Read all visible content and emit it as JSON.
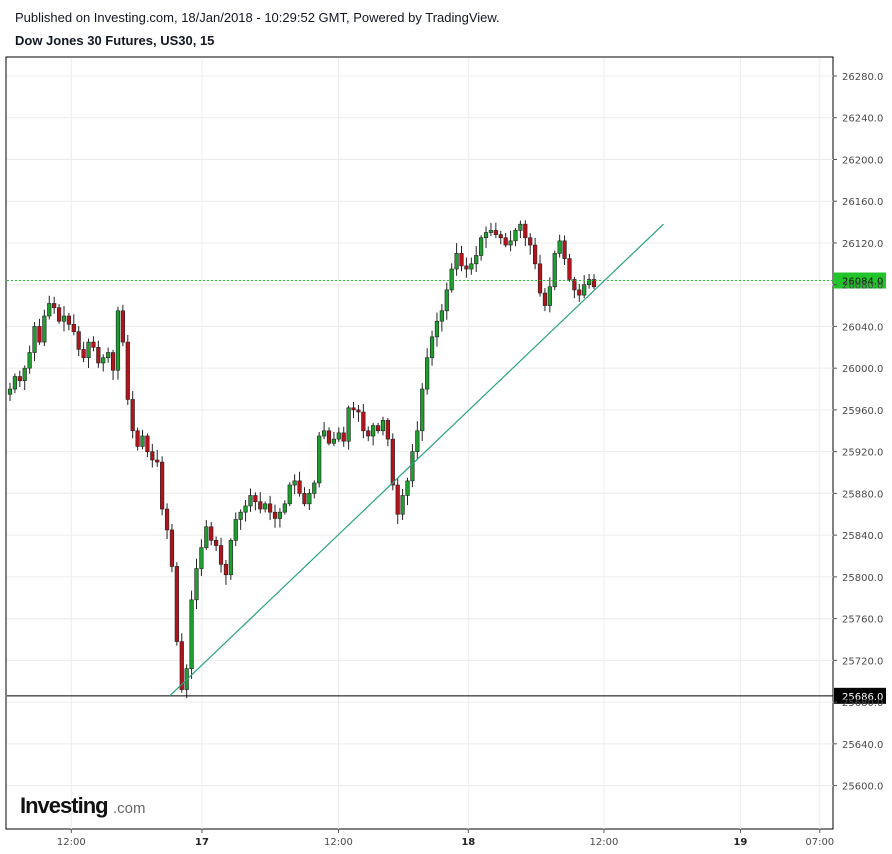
{
  "header": {
    "published": "Published on Investing.com, 18/Jan/2018 - 10:29:52 GMT, Powered by TradingView.",
    "title": "Dow Jones 30 Futures, US30, 15"
  },
  "watermark": {
    "brand": "Investing",
    "suffix": ".com"
  },
  "colors": {
    "up": "#1e9e2e",
    "down": "#b3141b",
    "wick": "#222222",
    "trendline": "#2aa383",
    "current_price": "#22c32b",
    "level_line": "#000000",
    "grid": "#ececec"
  },
  "chart_data": {
    "type": "candlestick",
    "title": "Dow Jones 30 Futures, US30, 15",
    "interval": "15",
    "ylim": [
      25560,
      26300
    ],
    "y_ticks": [
      26280,
      26240,
      26200,
      26160,
      26120,
      26080,
      26040,
      26000,
      25960,
      25920,
      25880,
      25840,
      25800,
      25760,
      25720,
      25680,
      25640,
      25600
    ],
    "y_tick_labels": [
      "26280.0",
      "26240.0",
      "26200.0",
      "26160.0",
      "26120.0",
      "26080.0",
      "26040.0",
      "26000.0",
      "25960.0",
      "25920.0",
      "25880.0",
      "25840.0",
      "25800.0",
      "25760.0",
      "25720.0",
      "25680.0",
      "25640.0",
      "25600.0"
    ],
    "x_ticks": [
      {
        "label": "12:00",
        "pos": 0.079,
        "bold": false
      },
      {
        "label": "17",
        "pos": 0.237,
        "bold": true
      },
      {
        "label": "12:00",
        "pos": 0.402,
        "bold": false
      },
      {
        "label": "18",
        "pos": 0.559,
        "bold": true
      },
      {
        "label": "12:00",
        "pos": 0.723,
        "bold": false
      },
      {
        "label": "19",
        "pos": 0.888,
        "bold": true
      },
      {
        "label": "07:00",
        "pos": 0.984,
        "bold": false
      }
    ],
    "current_price": {
      "value": 26084,
      "label": "26084.0"
    },
    "level_line": {
      "value": 25686,
      "label": "25686.0"
    },
    "trendline": {
      "from": {
        "pos": 0.198,
        "value": 25686
      },
      "to": {
        "pos": 0.795,
        "value": 26138
      }
    },
    "closes": [
      25980,
      25992,
      25988,
      26000,
      26015,
      26040,
      26025,
      26050,
      26062,
      26058,
      26045,
      26050,
      26042,
      26035,
      26018,
      26010,
      26025,
      26020,
      26005,
      26010,
      26015,
      25998,
      26055,
      26025,
      25970,
      25940,
      25925,
      25935,
      25920,
      25912,
      25910,
      25865,
      25845,
      25810,
      25738,
      25692,
      25712,
      25778,
      25808,
      25828,
      25848,
      25835,
      25830,
      25812,
      25802,
      25835,
      25855,
      25862,
      25868,
      25878,
      25872,
      25865,
      25870,
      25862,
      25856,
      25862,
      25870,
      25888,
      25892,
      25880,
      25870,
      25880,
      25890,
      25935,
      25940,
      25928,
      25932,
      25938,
      25930,
      25962,
      25960,
      25958,
      25940,
      25935,
      25945,
      25940,
      25950,
      25932,
      25888,
      25860,
      25878,
      25892,
      25920,
      25940,
      25980,
      26010,
      26030,
      26045,
      26055,
      26075,
      26095,
      26110,
      26098,
      26095,
      26100,
      26108,
      26125,
      26130,
      26132,
      26128,
      26125,
      26118,
      26122,
      26132,
      26138,
      26125,
      26118,
      26100,
      26072,
      26060,
      26078,
      26110,
      26122,
      26105,
      26085,
      26075,
      26070,
      26080,
      26085,
      26078
    ]
  }
}
